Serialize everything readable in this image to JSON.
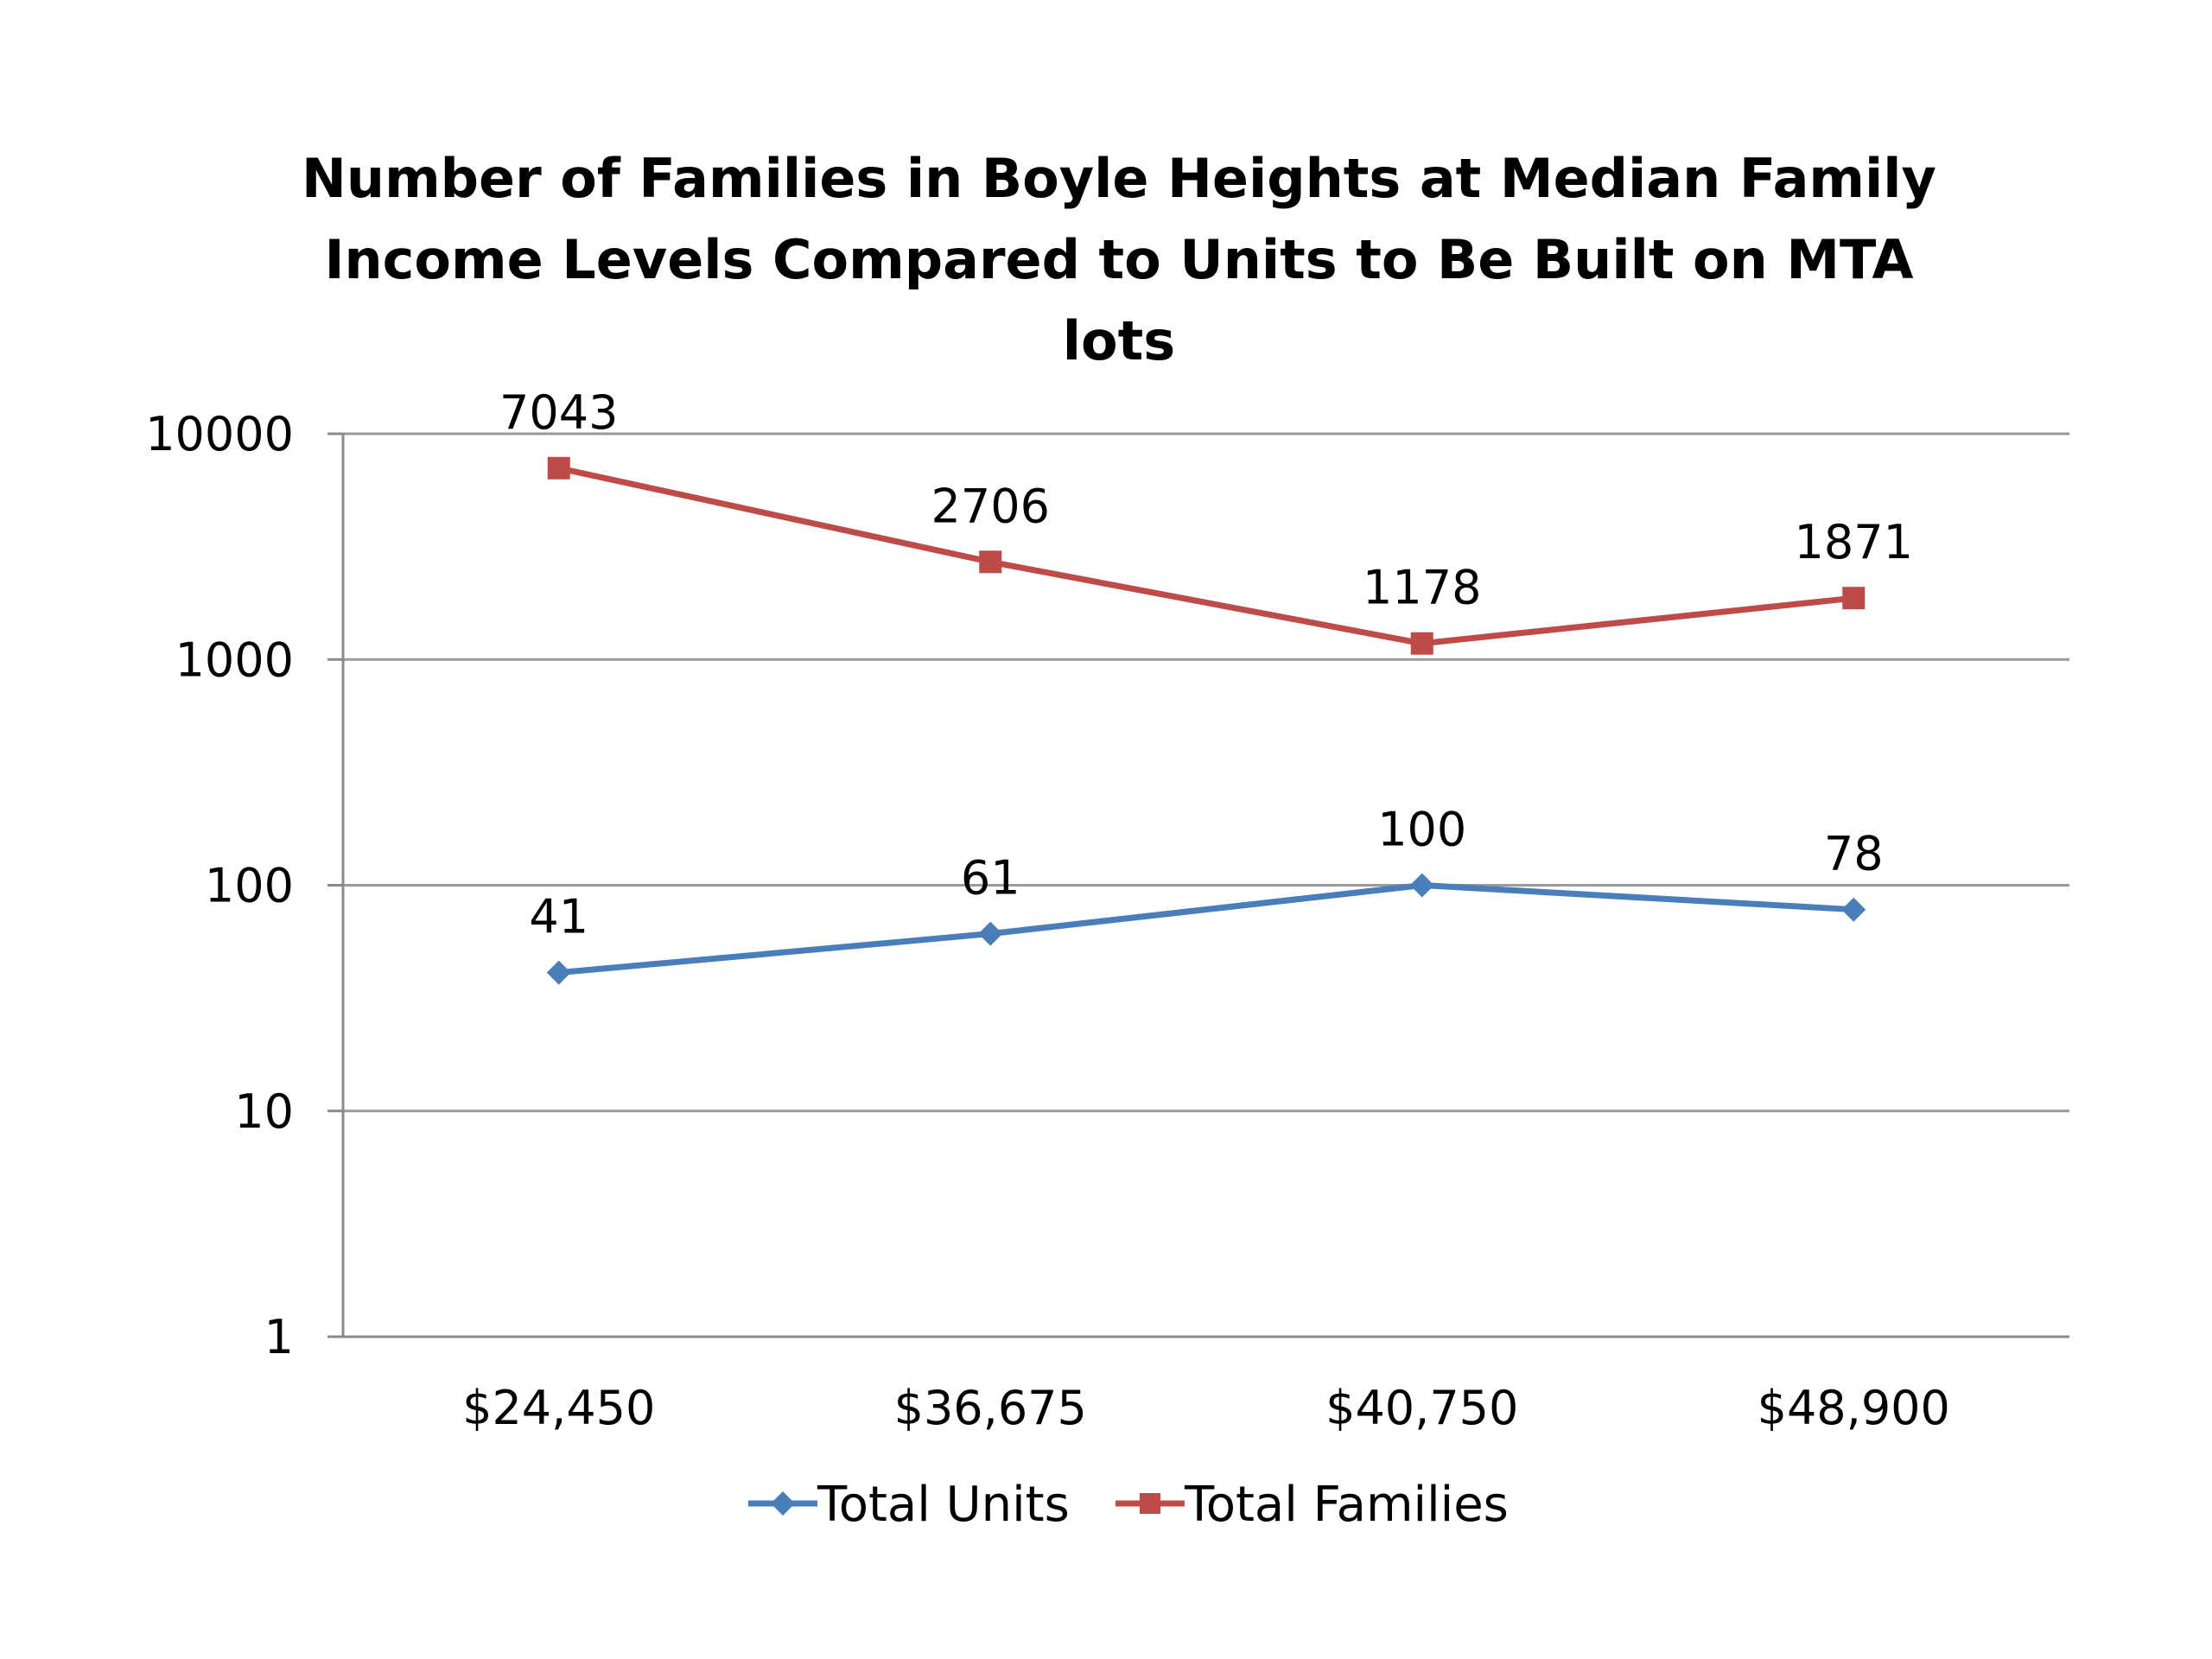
{
  "chart_data": {
    "type": "line",
    "title": "Number of Families in Boyle Heights at Median Family Income Levels Compared to Units to Be Built on MTA lots",
    "title_lines": [
      "Number of Families in Boyle Heights at Median Family",
      "Income Levels Compared to Units to Be Built on MTA",
      "lots"
    ],
    "xlabel": "",
    "ylabel": "",
    "y_scale": "log",
    "ylim": [
      1,
      10000
    ],
    "y_ticks": [
      1,
      10,
      100,
      1000,
      10000
    ],
    "y_tick_labels": [
      "1",
      "10",
      "100",
      "1000",
      "10000"
    ],
    "grid": true,
    "legend_position": "bottom",
    "categories": [
      "$24,450",
      "$36,675",
      "$40,750",
      "$48,900"
    ],
    "series": [
      {
        "name": "Total Units",
        "values": [
          41,
          61,
          100,
          78
        ],
        "color": "#4a7ebb",
        "marker": "diamond"
      },
      {
        "name": "Total Families",
        "values": [
          7043,
          2706,
          1178,
          1871
        ],
        "color": "#be4b48",
        "marker": "square"
      }
    ]
  }
}
